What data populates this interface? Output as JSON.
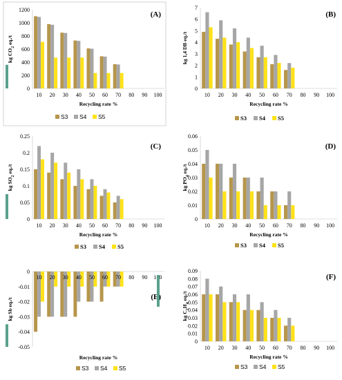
{
  "colors": {
    "S3": "#b6964c",
    "S4": "#a6a6a6",
    "S5": "#ffe21a",
    "panel_accent_left": "#5aa08c",
    "panel_accent_right": "#5aa08c"
  },
  "chart_data": [
    {
      "panel": "(A)",
      "type": "bar",
      "categories": [
        "10",
        "20",
        "30",
        "40",
        "50",
        "60",
        "70",
        "80",
        "90",
        "100"
      ],
      "ylabel": "kg CO2 eq./t",
      "ylabel_main": "kg CO",
      "ylabel_sub": "2",
      "ylabel_tail": " eq./t",
      "xlabel": "Recycling rate %",
      "ylim": [
        0,
        1200
      ],
      "yticks": [
        "0",
        "200",
        "400",
        "600",
        "800",
        "1000",
        "1200"
      ],
      "series": [
        {
          "name": "S3",
          "values": [
            1100,
            980,
            850,
            730,
            610,
            490,
            370,
            null,
            null,
            null
          ]
        },
        {
          "name": "S4",
          "values": [
            1090,
            970,
            845,
            725,
            605,
            485,
            365,
            null,
            null,
            null
          ]
        },
        {
          "name": "S5",
          "values": [
            710,
            470,
            470,
            470,
            235,
            235,
            235,
            null,
            null,
            null
          ]
        }
      ],
      "legend": [
        "S3",
        "S4",
        "S5"
      ],
      "legend_style": "normal"
    },
    {
      "panel": "(B)",
      "type": "bar",
      "categories": [
        "10",
        "20",
        "30",
        "40",
        "50",
        "60",
        "70",
        "80",
        "90",
        "100"
      ],
      "ylabel": "kg 1,4 DB eq./t",
      "ylabel_main": "kg 1,4 DB eq./t",
      "ylabel_sub": "",
      "ylabel_tail": "",
      "xlabel": "Recycling rate %",
      "ylim": [
        0,
        7
      ],
      "yticks": [
        "0",
        "1",
        "2",
        "3",
        "4",
        "5",
        "6",
        "7"
      ],
      "series": [
        {
          "name": "S3",
          "values": [
            4.9,
            4.3,
            3.8,
            3.2,
            2.7,
            2.1,
            1.6,
            null,
            null,
            null
          ]
        },
        {
          "name": "S4",
          "values": [
            6.6,
            5.9,
            5.2,
            4.4,
            3.7,
            2.9,
            2.2,
            null,
            null,
            null
          ]
        },
        {
          "name": "S5",
          "values": [
            5.3,
            4.4,
            4.0,
            3.5,
            2.7,
            2.2,
            1.8,
            null,
            null,
            null
          ]
        }
      ],
      "legend": [
        "S3",
        "S4",
        "S5"
      ],
      "legend_style": "bold"
    },
    {
      "panel": "(C)",
      "type": "bar",
      "categories": [
        "10",
        "20",
        "30",
        "40",
        "50",
        "60",
        "70",
        "80",
        "90",
        "100"
      ],
      "ylabel": "kg SO2 eq./t",
      "ylabel_main": "kg SO",
      "ylabel_sub": "2",
      "ylabel_tail": " eq./t",
      "xlabel": "Recycling rate %",
      "ylim": [
        0,
        0.25
      ],
      "yticks": [
        "0",
        "0.05",
        "0.1",
        "0.15",
        "0.2",
        "0.25"
      ],
      "series": [
        {
          "name": "S3",
          "values": [
            0.15,
            0.14,
            0.12,
            0.1,
            0.09,
            0.07,
            0.05,
            null,
            null,
            null
          ]
        },
        {
          "name": "S4",
          "values": [
            0.22,
            0.2,
            0.17,
            0.15,
            0.12,
            0.09,
            0.07,
            null,
            null,
            null
          ]
        },
        {
          "name": "S5",
          "values": [
            0.18,
            0.17,
            0.14,
            0.12,
            0.1,
            0.08,
            0.06,
            null,
            null,
            null
          ]
        }
      ],
      "legend": [
        "S3",
        "S4",
        "S5"
      ],
      "legend_style": "bold"
    },
    {
      "panel": "(D)",
      "type": "bar",
      "categories": [
        "10",
        "20",
        "30",
        "40",
        "50",
        "60",
        "70",
        "80",
        "90",
        "100"
      ],
      "ylabel": "kg PO4 eq./t",
      "ylabel_main": "kg PO",
      "ylabel_sub": "4",
      "ylabel_tail": " eq./t",
      "xlabel": "Recycling rate %",
      "ylim": [
        0,
        0.06
      ],
      "yticks": [
        "0",
        "0.01",
        "0.02",
        "0.03",
        "0.04",
        "0.05",
        "0.06"
      ],
      "series": [
        {
          "name": "S3",
          "values": [
            0.04,
            0.04,
            0.03,
            0.03,
            0.02,
            0.02,
            0.01,
            null,
            null,
            null
          ]
        },
        {
          "name": "S4",
          "values": [
            0.05,
            0.04,
            0.04,
            0.03,
            0.03,
            0.02,
            0.02,
            null,
            null,
            null
          ]
        },
        {
          "name": "S5",
          "values": [
            0.03,
            0.02,
            0.02,
            0.02,
            0.01,
            0.01,
            0.01,
            null,
            null,
            null
          ]
        }
      ],
      "legend": [
        "S3",
        "S4",
        "S5"
      ],
      "legend_style": "bold"
    },
    {
      "panel": "(E)",
      "type": "bar",
      "categories": [
        "10",
        "20",
        "30",
        "40",
        "50",
        "60",
        "70",
        "80",
        "90",
        "100"
      ],
      "ylabel": "kg Sb eq./t",
      "ylabel_main": "kg Sb eq./t",
      "ylabel_sub": "",
      "ylabel_tail": "",
      "xlabel": "Recycling rate %",
      "ylim": [
        -0.05,
        0
      ],
      "yticks": [
        "0",
        "-0.01",
        "-0.02",
        "-0.03",
        "-0.04",
        "-0.05"
      ],
      "series": [
        {
          "name": "S3",
          "values": [
            -0.04,
            -0.03,
            -0.03,
            -0.03,
            -0.02,
            -0.02,
            -0.01,
            null,
            null,
            null
          ]
        },
        {
          "name": "S4",
          "values": [
            -0.03,
            -0.03,
            -0.03,
            -0.02,
            -0.02,
            -0.01,
            -0.01,
            null,
            null,
            null
          ]
        },
        {
          "name": "S5",
          "values": [
            -0.02,
            -0.01,
            -0.01,
            -0.01,
            -0.01,
            -0.01,
            -0.01,
            null,
            null,
            null
          ]
        }
      ],
      "legend": [
        "S3",
        "S4",
        "S5"
      ],
      "legend_style": "normal"
    },
    {
      "panel": "(F)",
      "type": "bar",
      "categories": [
        "10",
        "20",
        "30",
        "40",
        "50",
        "60",
        "70",
        "80",
        "90",
        "100"
      ],
      "ylabel": "kg C2H4 eq./t",
      "ylabel_main": "kg C",
      "ylabel_sub": "2",
      "ylabel_tail": "H",
      "ylabel_sub2": "4",
      "ylabel_tail2": " eq./t",
      "xlabel": "Recycling rate %",
      "ylim": [
        0,
        0.09
      ],
      "yticks": [
        "0",
        "0.01",
        "0.02",
        "0.03",
        "0.04",
        "0.05",
        "0.06",
        "0.07",
        "0.08",
        "0.09"
      ],
      "series": [
        {
          "name": "S3",
          "values": [
            0.06,
            0.06,
            0.05,
            0.04,
            0.04,
            0.03,
            0.02,
            null,
            null,
            null
          ]
        },
        {
          "name": "S4",
          "values": [
            0.08,
            0.07,
            0.06,
            0.06,
            0.05,
            0.04,
            0.03,
            null,
            null,
            null
          ]
        },
        {
          "name": "S5",
          "values": [
            0.06,
            0.05,
            0.05,
            0.04,
            0.03,
            0.03,
            0.02,
            null,
            null,
            null
          ]
        }
      ],
      "legend": [
        "S3",
        "S4",
        "S5"
      ],
      "legend_style": "normal"
    }
  ]
}
